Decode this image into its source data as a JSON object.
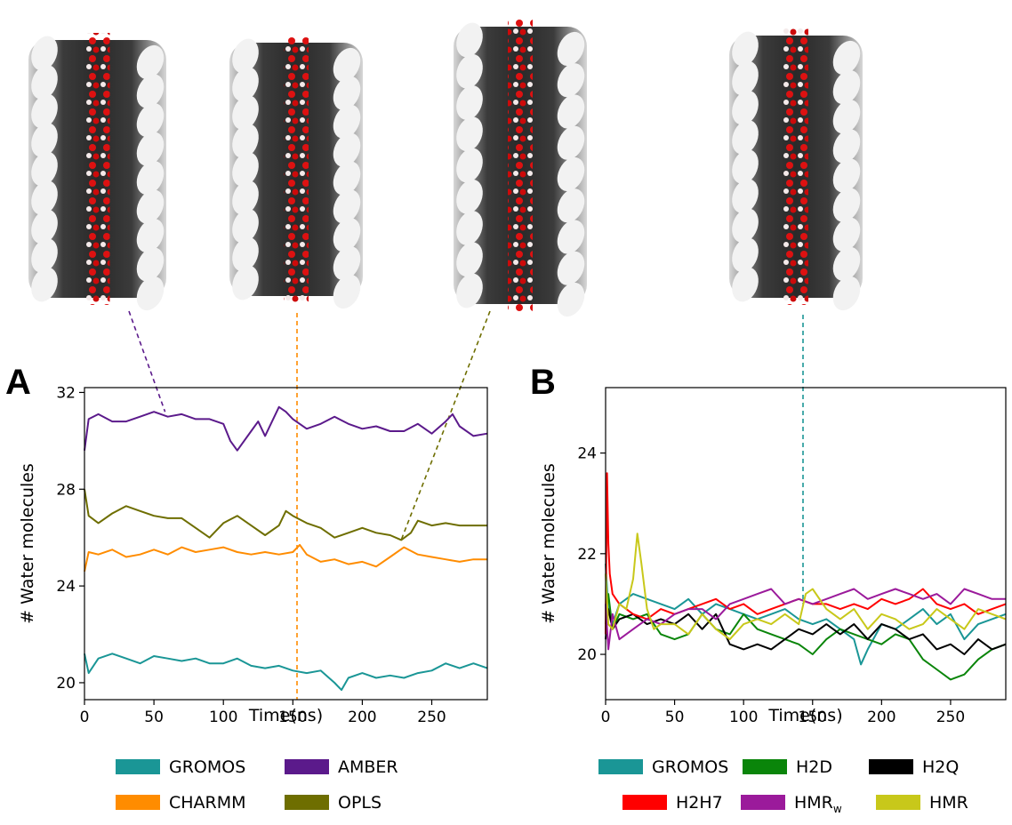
{
  "chart_data": [
    {
      "panel": "A",
      "type": "line",
      "xlabel": "Time(ns)",
      "ylabel": "# Water molecules",
      "xlim": [
        0,
        290
      ],
      "ylim": [
        19.3,
        32.2
      ],
      "xticks": [
        0,
        50,
        100,
        150,
        200,
        250
      ],
      "yticks": [
        20,
        24,
        28,
        32
      ],
      "callout_times": [
        58,
        155,
        228
      ],
      "series": [
        {
          "name": "GROMOS",
          "color": "#1a9696",
          "x": [
            0,
            3,
            10,
            20,
            30,
            40,
            50,
            60,
            70,
            80,
            90,
            100,
            110,
            120,
            130,
            140,
            150,
            160,
            170,
            180,
            185,
            190,
            200,
            210,
            220,
            230,
            240,
            250,
            260,
            270,
            280,
            290
          ],
          "y": [
            21.2,
            20.4,
            21.0,
            21.2,
            21.0,
            20.8,
            21.1,
            21.0,
            20.9,
            21.0,
            20.8,
            20.8,
            21.0,
            20.7,
            20.6,
            20.7,
            20.5,
            20.4,
            20.5,
            20.0,
            19.7,
            20.2,
            20.4,
            20.2,
            20.3,
            20.2,
            20.4,
            20.5,
            20.8,
            20.6,
            20.8,
            20.6
          ]
        },
        {
          "name": "AMBER",
          "color": "#5b1a8b",
          "x": [
            0,
            3,
            10,
            20,
            30,
            40,
            50,
            60,
            70,
            80,
            90,
            100,
            105,
            110,
            120,
            125,
            130,
            140,
            145,
            150,
            160,
            170,
            180,
            190,
            200,
            210,
            220,
            230,
            240,
            250,
            260,
            265,
            270,
            280,
            290
          ],
          "y": [
            29.6,
            30.9,
            31.1,
            30.8,
            30.8,
            31.0,
            31.2,
            31.0,
            31.1,
            30.9,
            30.9,
            30.7,
            30.0,
            29.6,
            30.4,
            30.8,
            30.2,
            31.4,
            31.2,
            30.9,
            30.5,
            30.7,
            31.0,
            30.7,
            30.5,
            30.6,
            30.4,
            30.4,
            30.7,
            30.3,
            30.8,
            31.1,
            30.6,
            30.2,
            30.3
          ]
        },
        {
          "name": "CHARMM",
          "color": "#ff8c00",
          "x": [
            0,
            3,
            10,
            20,
            30,
            40,
            50,
            60,
            70,
            80,
            90,
            100,
            110,
            120,
            130,
            140,
            150,
            155,
            160,
            170,
            180,
            190,
            200,
            210,
            220,
            230,
            240,
            250,
            260,
            270,
            280,
            290
          ],
          "y": [
            24.6,
            25.4,
            25.3,
            25.5,
            25.2,
            25.3,
            25.5,
            25.3,
            25.6,
            25.4,
            25.5,
            25.6,
            25.4,
            25.3,
            25.4,
            25.3,
            25.4,
            25.7,
            25.3,
            25.0,
            25.1,
            24.9,
            25.0,
            24.8,
            25.2,
            25.6,
            25.3,
            25.2,
            25.1,
            25.0,
            25.1,
            25.1
          ]
        },
        {
          "name": "OPLS",
          "color": "#6e6e00",
          "x": [
            0,
            3,
            10,
            20,
            30,
            40,
            50,
            60,
            70,
            80,
            90,
            100,
            110,
            120,
            130,
            140,
            145,
            150,
            160,
            170,
            180,
            190,
            200,
            210,
            220,
            228,
            235,
            240,
            250,
            260,
            270,
            280,
            290
          ],
          "y": [
            28.0,
            26.9,
            26.6,
            27.0,
            27.3,
            27.1,
            26.9,
            26.8,
            26.8,
            26.4,
            26.0,
            26.6,
            26.9,
            26.5,
            26.1,
            26.5,
            27.1,
            26.9,
            26.6,
            26.4,
            26.0,
            26.2,
            26.4,
            26.2,
            26.1,
            25.9,
            26.2,
            26.7,
            26.5,
            26.6,
            26.5,
            26.5,
            26.5
          ]
        }
      ],
      "legend": {
        "entries": [
          "GROMOS",
          "AMBER",
          "CHARMM",
          "OPLS"
        ],
        "colors": [
          "#1a9696",
          "#5b1a8b",
          "#ff8c00",
          "#6e6e00"
        ]
      }
    },
    {
      "panel": "B",
      "type": "line",
      "xlabel": "Time(ns)",
      "ylabel": "# Water molecules",
      "xlim": [
        0,
        290
      ],
      "ylim": [
        19.1,
        25.3
      ],
      "xticks": [
        0,
        50,
        100,
        150,
        200,
        250
      ],
      "yticks": [
        20,
        22,
        24
      ],
      "callout_times": [
        143
      ],
      "series": [
        {
          "name": "GROMOS",
          "color": "#1a9696",
          "x": [
            0,
            2,
            5,
            10,
            20,
            30,
            40,
            50,
            60,
            70,
            80,
            90,
            100,
            110,
            120,
            130,
            140,
            150,
            160,
            170,
            180,
            185,
            190,
            200,
            210,
            220,
            230,
            240,
            250,
            260,
            270,
            280,
            290
          ],
          "y": [
            21.8,
            20.9,
            20.6,
            21.0,
            21.2,
            21.1,
            21.0,
            20.9,
            21.1,
            20.8,
            21.0,
            20.9,
            20.8,
            20.7,
            20.8,
            20.9,
            20.7,
            20.6,
            20.7,
            20.5,
            20.3,
            19.8,
            20.1,
            20.6,
            20.5,
            20.7,
            20.9,
            20.6,
            20.8,
            20.3,
            20.6,
            20.7,
            20.8
          ]
        },
        {
          "name": "H2D",
          "color": "#0a850a",
          "x": [
            0,
            2,
            5,
            10,
            20,
            30,
            40,
            50,
            60,
            70,
            80,
            90,
            100,
            110,
            120,
            130,
            140,
            150,
            160,
            170,
            180,
            190,
            200,
            210,
            220,
            230,
            240,
            250,
            260,
            270,
            280,
            290
          ],
          "y": [
            20.6,
            21.2,
            20.5,
            20.8,
            20.7,
            20.8,
            20.4,
            20.3,
            20.4,
            20.8,
            20.5,
            20.4,
            20.8,
            20.5,
            20.4,
            20.3,
            20.2,
            20.0,
            20.3,
            20.5,
            20.4,
            20.3,
            20.2,
            20.4,
            20.3,
            19.9,
            19.7,
            19.5,
            19.6,
            19.9,
            20.1,
            20.2
          ]
        },
        {
          "name": "H2Q",
          "color": "#000000",
          "x": [
            0,
            2,
            5,
            10,
            20,
            30,
            40,
            50,
            60,
            70,
            80,
            90,
            100,
            110,
            120,
            130,
            140,
            150,
            160,
            170,
            180,
            190,
            200,
            210,
            220,
            230,
            240,
            250,
            260,
            270,
            280,
            290
          ],
          "y": [
            20.3,
            20.9,
            20.5,
            20.7,
            20.8,
            20.6,
            20.7,
            20.6,
            20.8,
            20.5,
            20.8,
            20.2,
            20.1,
            20.2,
            20.1,
            20.3,
            20.5,
            20.4,
            20.6,
            20.4,
            20.6,
            20.3,
            20.6,
            20.5,
            20.3,
            20.4,
            20.1,
            20.2,
            20.0,
            20.3,
            20.1,
            20.2
          ]
        },
        {
          "name": "H2H7",
          "color": "#ff0000",
          "x": [
            0,
            1,
            2,
            3,
            5,
            10,
            20,
            30,
            40,
            50,
            60,
            70,
            80,
            90,
            100,
            110,
            120,
            130,
            140,
            150,
            160,
            170,
            180,
            190,
            200,
            210,
            220,
            230,
            240,
            250,
            260,
            270,
            280,
            290
          ],
          "y": [
            20.4,
            23.6,
            22.2,
            21.6,
            21.2,
            21.0,
            20.8,
            20.7,
            20.9,
            20.8,
            20.9,
            21.0,
            21.1,
            20.9,
            21.0,
            20.8,
            20.9,
            21.0,
            21.1,
            21.0,
            21.0,
            20.9,
            21.0,
            20.9,
            21.1,
            21.0,
            21.1,
            21.3,
            21.0,
            20.9,
            21.0,
            20.8,
            20.9,
            21.0
          ]
        },
        {
          "name": "HMR_w",
          "color": "#9b1a9b",
          "x": [
            0,
            2,
            5,
            10,
            20,
            30,
            40,
            50,
            60,
            70,
            80,
            90,
            100,
            110,
            120,
            130,
            140,
            150,
            160,
            170,
            180,
            190,
            200,
            210,
            220,
            230,
            240,
            250,
            260,
            270,
            280,
            290
          ],
          "y": [
            21.0,
            20.1,
            20.8,
            20.3,
            20.5,
            20.7,
            20.6,
            20.8,
            20.9,
            20.9,
            20.7,
            21.0,
            21.1,
            21.2,
            21.3,
            21.0,
            21.1,
            21.0,
            21.1,
            21.2,
            21.3,
            21.1,
            21.2,
            21.3,
            21.2,
            21.1,
            21.2,
            21.0,
            21.3,
            21.2,
            21.1,
            21.1
          ]
        },
        {
          "name": "HMR",
          "color": "#c8c81a",
          "x": [
            0,
            2,
            5,
            10,
            15,
            20,
            23,
            26,
            30,
            35,
            40,
            50,
            60,
            70,
            80,
            90,
            100,
            110,
            120,
            130,
            140,
            145,
            150,
            160,
            170,
            180,
            190,
            200,
            210,
            220,
            230,
            240,
            250,
            260,
            270,
            280,
            290
          ],
          "y": [
            21.6,
            20.6,
            20.5,
            21.0,
            20.9,
            21.5,
            22.4,
            21.8,
            20.9,
            20.5,
            20.6,
            20.6,
            20.4,
            20.8,
            20.5,
            20.3,
            20.6,
            20.7,
            20.6,
            20.8,
            20.6,
            21.2,
            21.3,
            20.9,
            20.7,
            20.9,
            20.5,
            20.8,
            20.7,
            20.5,
            20.6,
            20.9,
            20.7,
            20.5,
            20.9,
            20.8,
            20.7
          ]
        }
      ],
      "legend": {
        "entries": [
          "GROMOS",
          "H2D",
          "H2Q",
          "H2H7",
          "HMR",
          "HMR"
        ],
        "colors": [
          "#1a9696",
          "#0a850a",
          "#000000",
          "#ff0000",
          "#9b1a9b",
          "#c8c81a"
        ],
        "subscript": {
          "4": "w"
        }
      }
    }
  ],
  "panels": {
    "a_letter": "A",
    "b_letter": "B"
  }
}
